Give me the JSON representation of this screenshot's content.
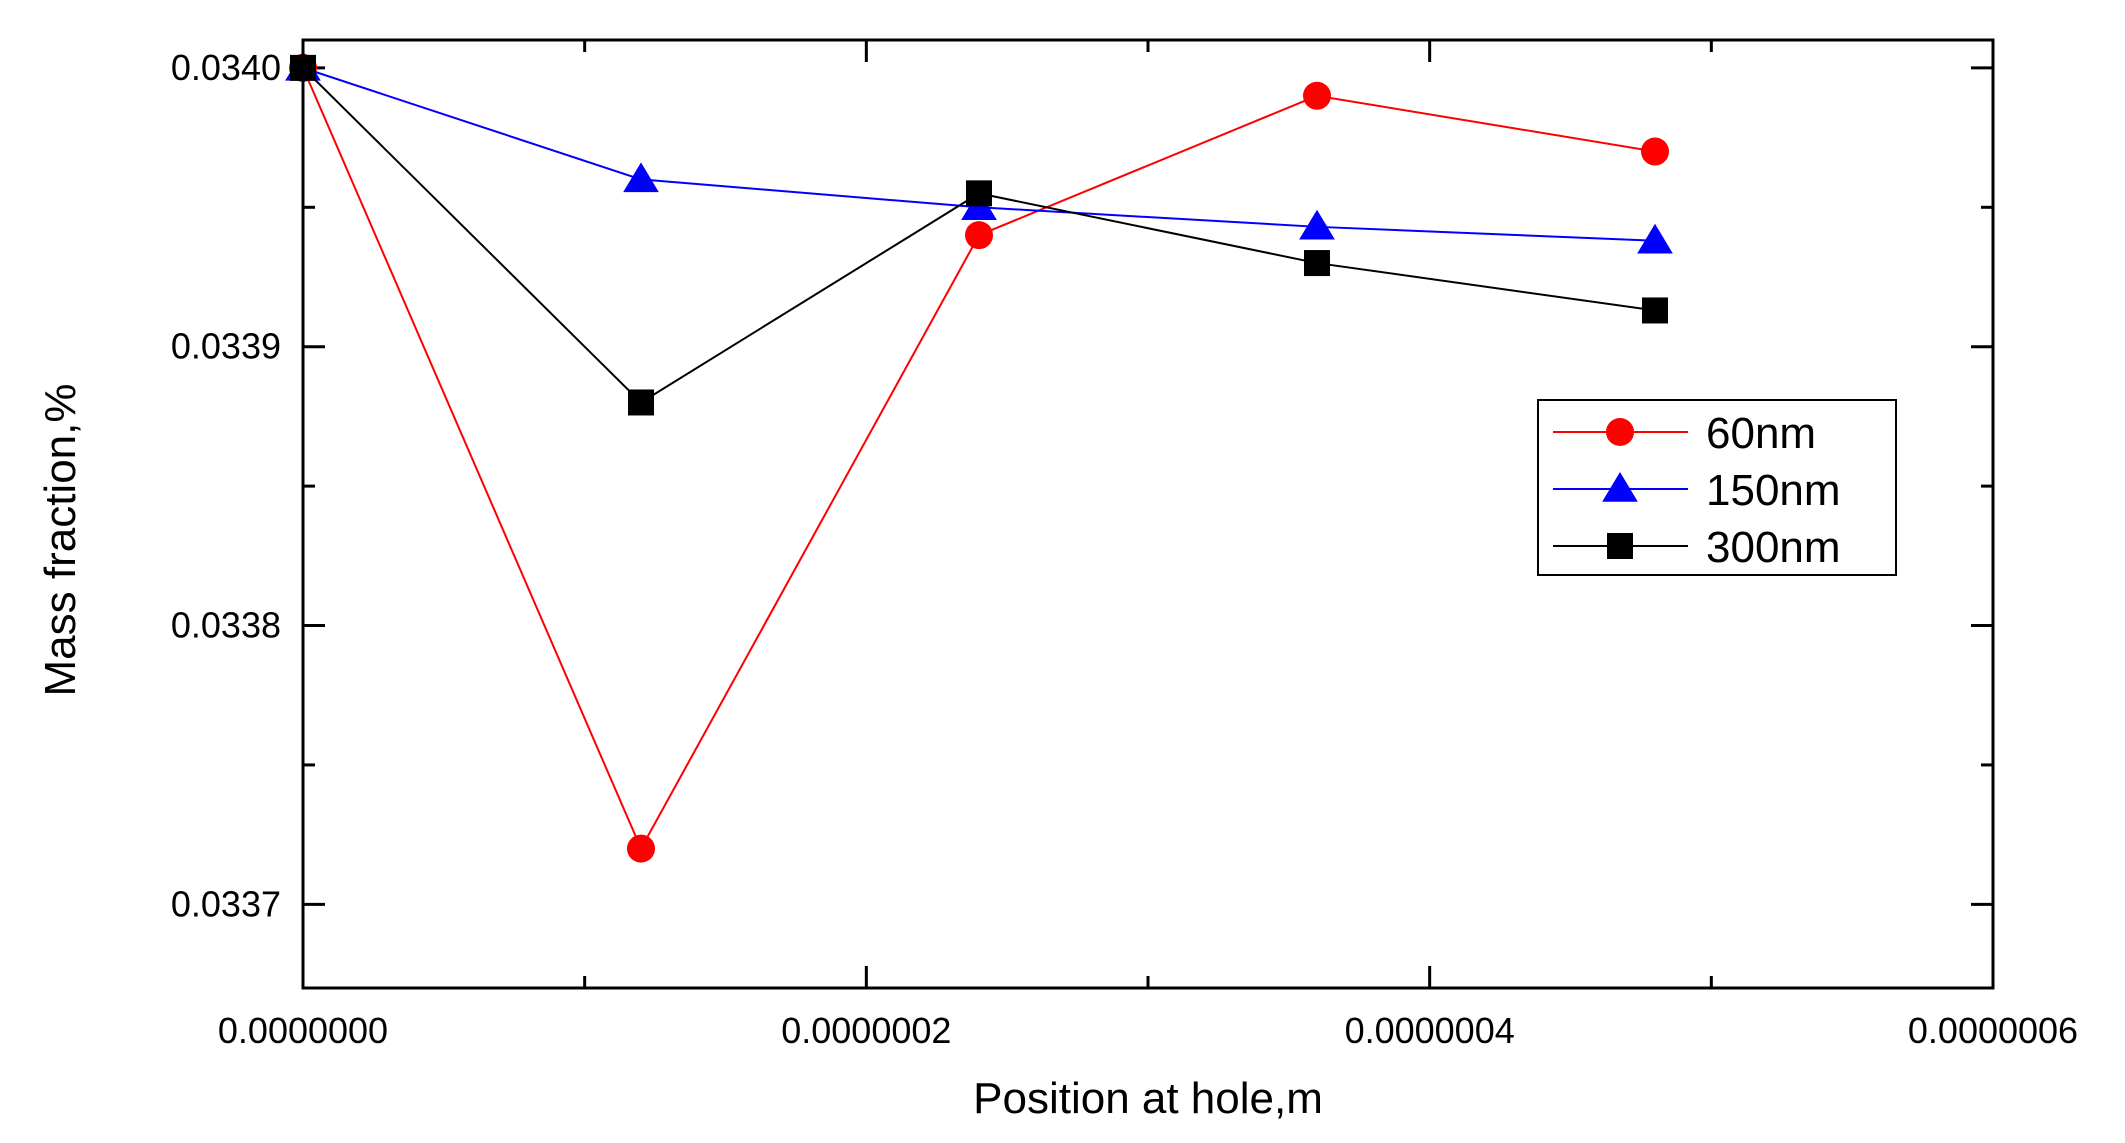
{
  "chart_data": {
    "type": "line",
    "title": "",
    "xlabel": "Position at hole,m",
    "ylabel": "Mass fraction,%",
    "xlim": [
      0.0,
      6e-07
    ],
    "ylim": [
      0.03367,
      0.03401
    ],
    "x_ticks": [
      0.0,
      2e-07,
      4e-07,
      6e-07
    ],
    "x_tick_labels": [
      "0.0000000",
      "0.0000002",
      "0.0000004",
      "0.0000006"
    ],
    "x_minor_ticks": [
      1e-07,
      3e-07,
      5e-07
    ],
    "y_ticks": [
      0.0337,
      0.0338,
      0.0339,
      0.034
    ],
    "y_tick_labels": [
      "0.0337",
      "0.0338",
      "0.0339",
      "0.0340"
    ],
    "y_minor_ticks": [
      0.03365,
      0.03375,
      0.03385,
      0.03395
    ],
    "grid": false,
    "legend_position": "right",
    "series": [
      {
        "name": "60nm",
        "color": "#ff0000",
        "marker": "circle",
        "x": [
          0.0,
          1.2e-07,
          2.4e-07,
          3.6e-07,
          4.8e-07
        ],
        "values": [
          0.034,
          0.03372,
          0.03394,
          0.03399,
          0.03397
        ]
      },
      {
        "name": "150nm",
        "color": "#0000ff",
        "marker": "triangle",
        "x": [
          0.0,
          1.2e-07,
          2.4e-07,
          3.6e-07,
          4.8e-07
        ],
        "values": [
          0.034,
          0.03396,
          0.03395,
          0.033943,
          0.033938
        ]
      },
      {
        "name": "300nm",
        "color": "#000000",
        "marker": "square",
        "x": [
          0.0,
          1.2e-07,
          2.4e-07,
          3.6e-07,
          4.8e-07
        ],
        "values": [
          0.034,
          0.03388,
          0.033955,
          0.03393,
          0.033913
        ]
      }
    ]
  }
}
